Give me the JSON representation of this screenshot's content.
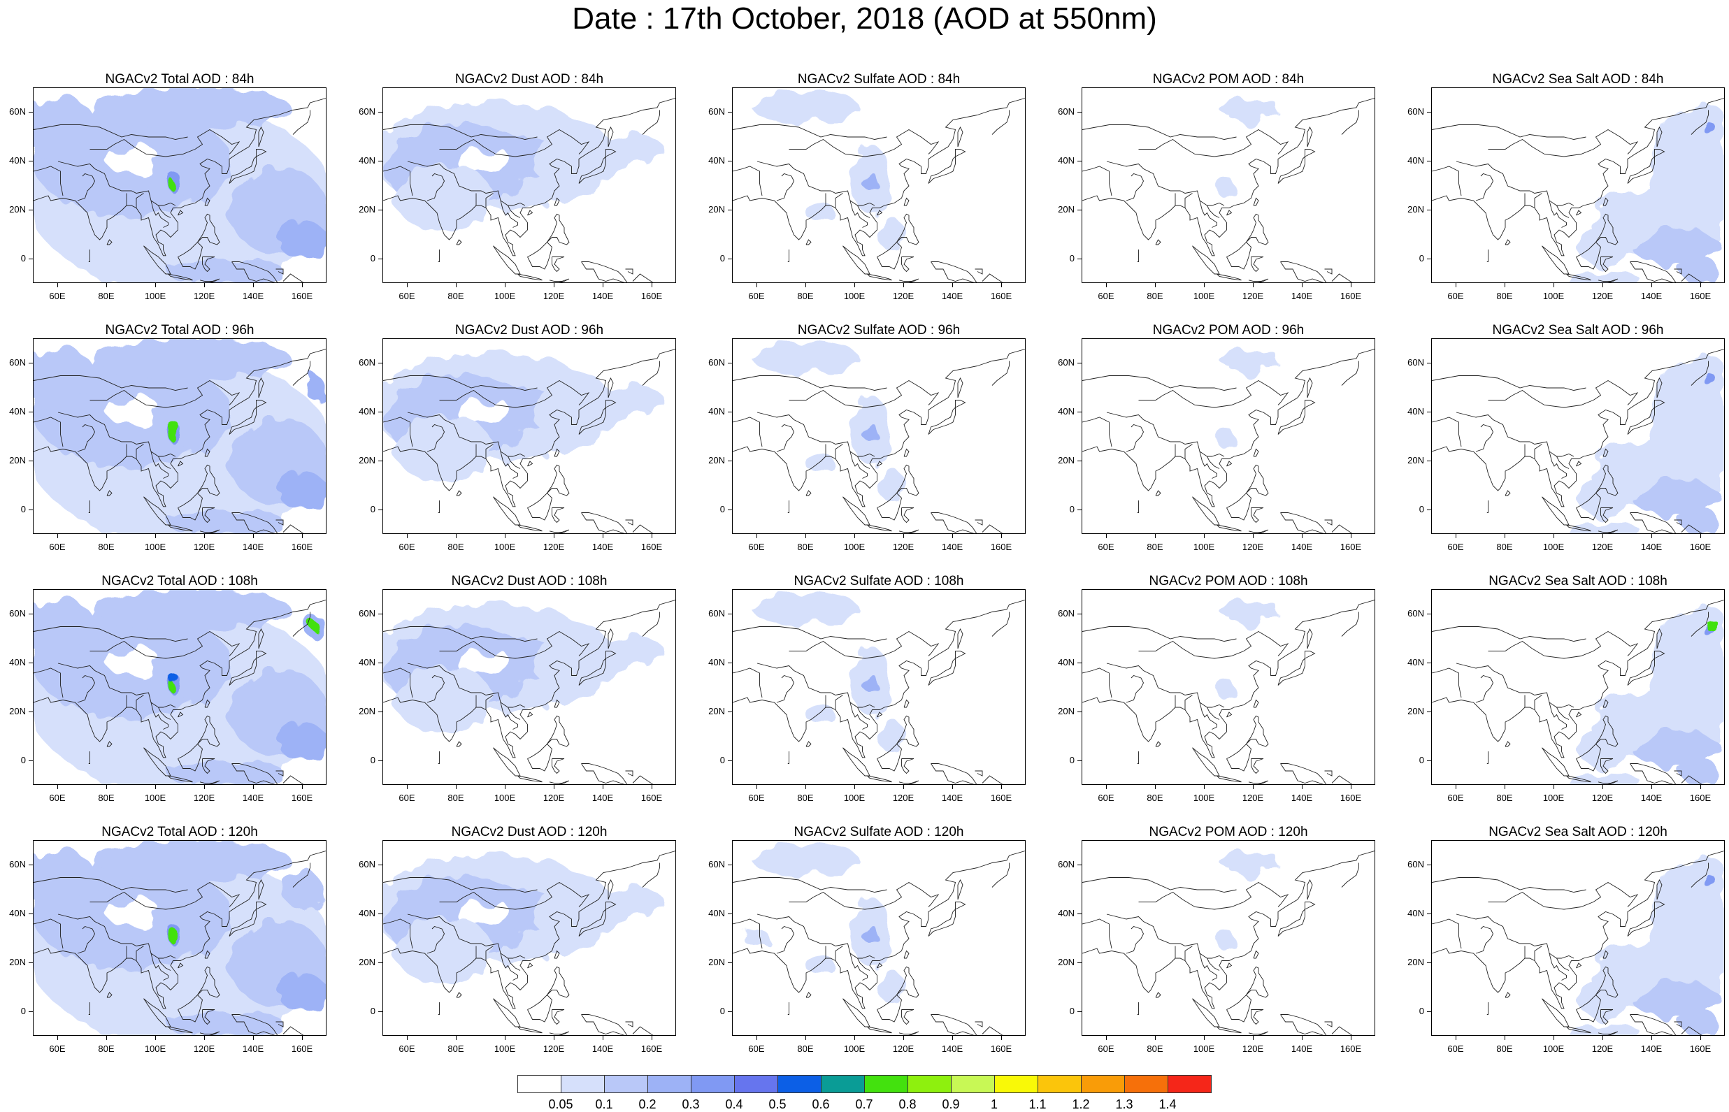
{
  "title": "Date : 17th October, 2018 (AOD at 550nm)",
  "axes": {
    "lat_labels": [
      "60N",
      "40N",
      "20N",
      "0"
    ],
    "lon_labels": [
      "60E",
      "80E",
      "100E",
      "120E",
      "140E",
      "160E"
    ],
    "lat_values": [
      60,
      40,
      20,
      0
    ],
    "lon_values": [
      60,
      80,
      100,
      120,
      140,
      160
    ],
    "lon_range": [
      50,
      170
    ],
    "lat_range": [
      -10,
      70
    ]
  },
  "panels": [
    {
      "title": "NGACv2 Total AOD : 84h",
      "species": "total"
    },
    {
      "title": "NGACv2 Dust AOD : 84h",
      "species": "dust"
    },
    {
      "title": "NGACv2 Sulfate AOD : 84h",
      "species": "sulfate"
    },
    {
      "title": "NGACv2 POM AOD : 84h",
      "species": "pom"
    },
    {
      "title": "NGACv2 Sea Salt AOD : 84h",
      "species": "seasalt"
    },
    {
      "title": "NGACv2 Total AOD : 96h",
      "species": "total"
    },
    {
      "title": "NGACv2 Dust AOD : 96h",
      "species": "dust"
    },
    {
      "title": "NGACv2 Sulfate AOD : 96h",
      "species": "sulfate"
    },
    {
      "title": "NGACv2 POM AOD : 96h",
      "species": "pom"
    },
    {
      "title": "NGACv2 Sea Salt AOD : 96h",
      "species": "seasalt"
    },
    {
      "title": "NGACv2 Total AOD : 108h",
      "species": "total"
    },
    {
      "title": "NGACv2 Dust AOD : 108h",
      "species": "dust"
    },
    {
      "title": "NGACv2 Sulfate AOD : 108h",
      "species": "sulfate"
    },
    {
      "title": "NGACv2 POM AOD : 108h",
      "species": "pom"
    },
    {
      "title": "NGACv2 Sea Salt AOD : 108h",
      "species": "seasalt"
    },
    {
      "title": "NGACv2 Total AOD : 120h",
      "species": "total"
    },
    {
      "title": "NGACv2 Dust AOD : 120h",
      "species": "dust"
    },
    {
      "title": "NGACv2 Sulfate AOD : 120h",
      "species": "sulfate"
    },
    {
      "title": "NGACv2 POM AOD : 120h",
      "species": "pom"
    },
    {
      "title": "NGACv2 Sea Salt  AOD : 120h",
      "species": "seasalt"
    }
  ],
  "colorbar": {
    "labels": [
      "0.05",
      "0.1",
      "0.2",
      "0.3",
      "0.4",
      "0.5",
      "0.6",
      "0.7",
      "0.8",
      "0.9",
      "1",
      "1.1",
      "1.2",
      "1.3",
      "1.4"
    ],
    "colors": [
      "#ffffff",
      "#d6e0fb",
      "#b9c8f8",
      "#9db2f6",
      "#8099f3",
      "#6675ee",
      "#0c5fe6",
      "#0a9c96",
      "#43e10e",
      "#8ef00e",
      "#c8f855",
      "#f9f907",
      "#fbc50b",
      "#f99c08",
      "#f6700a",
      "#f52619"
    ]
  }
}
